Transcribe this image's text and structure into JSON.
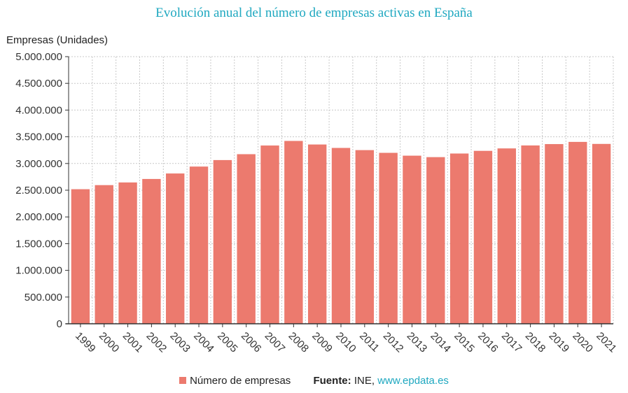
{
  "chart_data": {
    "type": "bar",
    "title": "Evolución anual del número de empresas activas en España",
    "ylabel": "Empresas (Unidades)",
    "xlabel": "",
    "categories": [
      "1999",
      "2000",
      "2001",
      "2002",
      "2003",
      "2004",
      "2005",
      "2006",
      "2007",
      "2008",
      "2009",
      "2010",
      "2011",
      "2012",
      "2013",
      "2014",
      "2015",
      "2016",
      "2017",
      "2018",
      "2019",
      "2020",
      "2021"
    ],
    "series": [
      {
        "name": "Número de empresas",
        "color": "#ec7a6e",
        "values": [
          2518801,
          2595392,
          2645317,
          2710400,
          2813159,
          2942583,
          3064129,
          3174393,
          3336657,
          3422239,
          3355830,
          3291263,
          3250576,
          3199617,
          3146570,
          3119310,
          3186878,
          3236582,
          3282346,
          3337646,
          3363197,
          3404428,
          3366570
        ]
      }
    ],
    "ylim": [
      0,
      5000000
    ],
    "yticks": [
      0,
      500000,
      1000000,
      1500000,
      2000000,
      2500000,
      3000000,
      3500000,
      4000000,
      4500000,
      5000000
    ],
    "ytick_labels": [
      "0",
      "500.000",
      "1.000.000",
      "1.500.000",
      "2.000.000",
      "2.500.000",
      "3.000.000",
      "3.500.000",
      "4.000.000",
      "4.500.000",
      "5.000.000"
    ],
    "grid": true,
    "legend_position": "bottom-center",
    "source_label": "Fuente:",
    "source_value": "INE,",
    "source_link": "www.epdata.es"
  }
}
